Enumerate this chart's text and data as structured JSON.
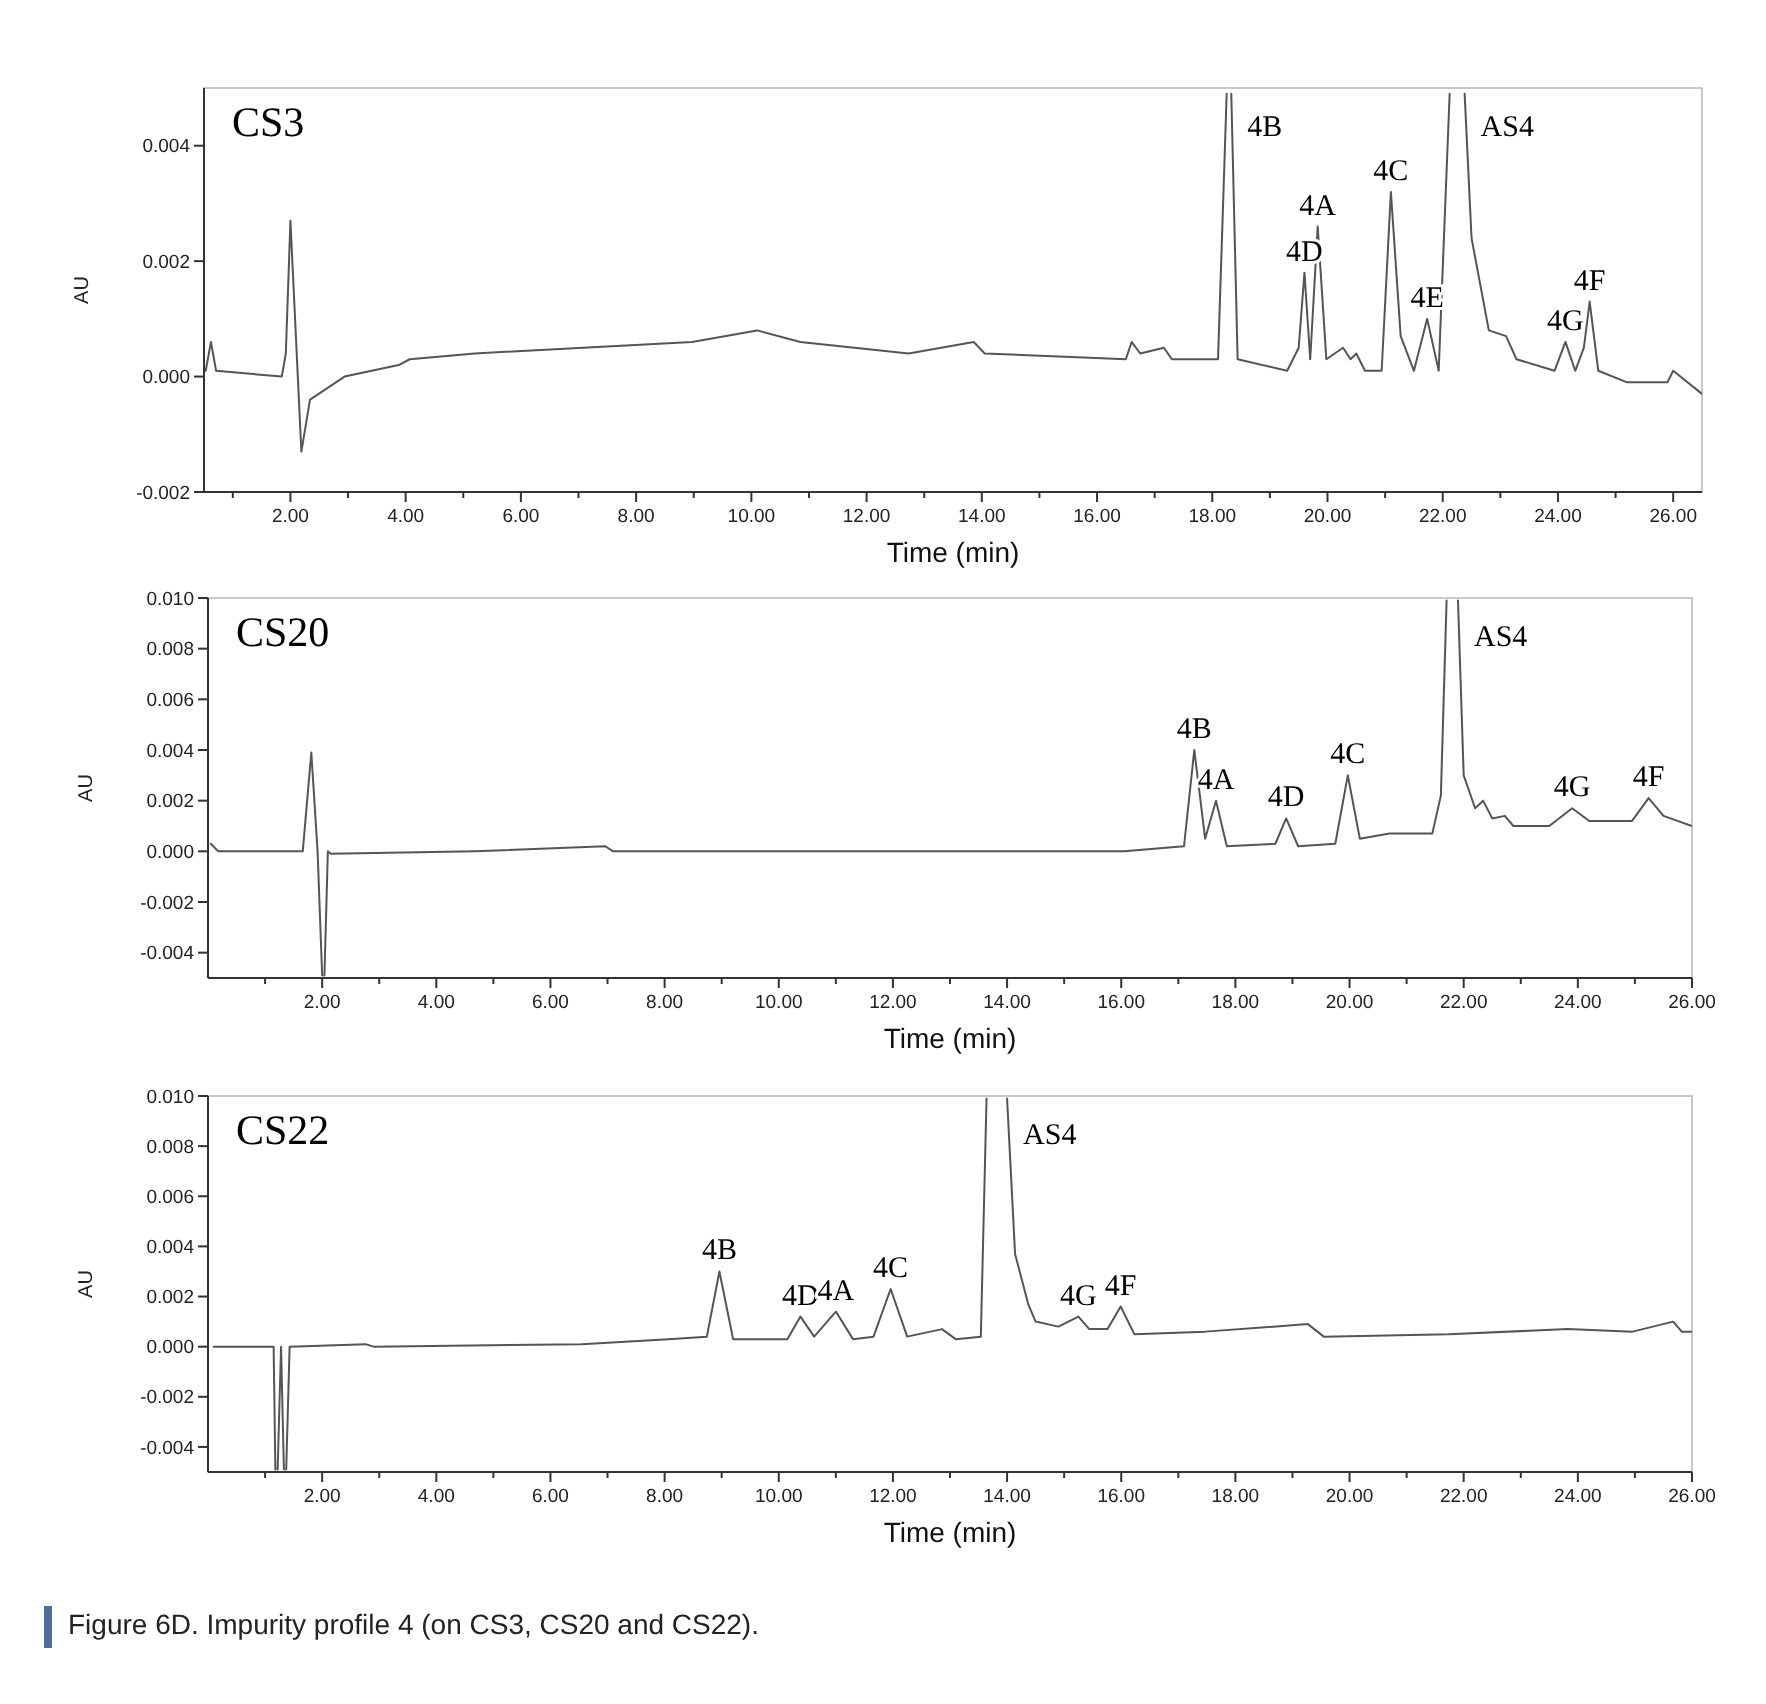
{
  "chart_data": [
    {
      "type": "line",
      "title": "CS3",
      "xlabel": "Time (min)",
      "ylabel": "AU",
      "xlim": [
        0.5,
        26.5
      ],
      "ylim": [
        -0.002,
        0.005
      ],
      "xticks": [
        {
          "value": 1,
          "label": null
        },
        {
          "value": 2,
          "label": "2.00"
        },
        {
          "value": 3,
          "label": null
        },
        {
          "value": 4,
          "label": "4.00"
        },
        {
          "value": 5,
          "label": null
        },
        {
          "value": 6,
          "label": "6.00"
        },
        {
          "value": 7,
          "label": null
        },
        {
          "value": 8,
          "label": "8.00"
        },
        {
          "value": 9,
          "label": null
        },
        {
          "value": 10,
          "label": "10.00"
        },
        {
          "value": 11,
          "label": null
        },
        {
          "value": 12,
          "label": "12.00"
        },
        {
          "value": 13,
          "label": null
        },
        {
          "value": 14,
          "label": "14.00"
        },
        {
          "value": 15,
          "label": null
        },
        {
          "value": 16,
          "label": "16.00"
        },
        {
          "value": 17,
          "label": null
        },
        {
          "value": 18,
          "label": "18.00"
        },
        {
          "value": 19,
          "label": null
        },
        {
          "value": 20,
          "label": "20.00"
        },
        {
          "value": 21,
          "label": null
        },
        {
          "value": 22,
          "label": "22.00"
        },
        {
          "value": 23,
          "label": null
        },
        {
          "value": 24,
          "label": "24.00"
        },
        {
          "value": 25,
          "label": null
        },
        {
          "value": 26,
          "label": "26.00"
        }
      ],
      "yticks": [
        {
          "value": -0.002,
          "label": "-0.002"
        },
        {
          "value": 0,
          "label": "0.000"
        },
        {
          "value": 0.002,
          "label": "0.002"
        },
        {
          "value": 0.004,
          "label": "0.004"
        }
      ],
      "series": [
        {
          "color": "#555555",
          "x": [
            0.53,
            0.62,
            0.71,
            1.85,
            1.92,
            2.0,
            2.19,
            2.34,
            2.94,
            3.88,
            4.07,
            5.2,
            7.08,
            8.97,
            10.1,
            10.85,
            12.73,
            13.86,
            14.05,
            16.5,
            16.6,
            16.75,
            17.16,
            17.3,
            18.1,
            18.25,
            18.29,
            18.33,
            18.44,
            19.3,
            19.5,
            19.6,
            19.7,
            19.83,
            19.98,
            20.27,
            20.4,
            20.5,
            20.65,
            20.94,
            21.1,
            21.27,
            21.5,
            21.73,
            21.93,
            22.12,
            22.25,
            22.38,
            22.5,
            22.8,
            23.1,
            23.28,
            23.94,
            24.13,
            24.3,
            24.45,
            24.55,
            24.7,
            25.2,
            25.9,
            26.0,
            26.5
          ],
          "values": [
            0.0001,
            0.0006,
            0.0001,
            0.0,
            0.0004,
            0.0027,
            -0.0013,
            -0.0004,
            0.0,
            0.0002,
            0.0003,
            0.0004,
            0.0005,
            0.0006,
            0.0008,
            0.0006,
            0.0004,
            0.0006,
            0.0004,
            0.0003,
            0.0006,
            0.0004,
            0.0005,
            0.0003,
            0.0003,
            0.0049,
            null,
            0.0049,
            0.0003,
            0.0001,
            0.0005,
            0.0018,
            0.0003,
            0.0026,
            0.0003,
            0.0005,
            0.0003,
            0.0004,
            0.0001,
            0.0001,
            0.0032,
            0.0007,
            0.0001,
            0.001,
            0.0001,
            0.0049,
            null,
            0.0049,
            0.0024,
            0.0008,
            0.0007,
            0.0003,
            0.0001,
            0.0006,
            0.0001,
            0.0005,
            0.0013,
            0.0001,
            -0.0001,
            -0.0001,
            0.0001,
            -0.0003
          ]
        }
      ],
      "annotations": [
        {
          "text": "4B",
          "x": 18.33,
          "y": 0.0049
        },
        {
          "text": "4D",
          "x": 19.6,
          "y": 0.0018
        },
        {
          "text": "4A",
          "x": 19.83,
          "y": 0.0026
        },
        {
          "text": "4C",
          "x": 21.1,
          "y": 0.0032
        },
        {
          "text": "4E",
          "x": 21.73,
          "y": 0.001
        },
        {
          "text": "AS4",
          "x": 22.38,
          "y": 0.0049
        },
        {
          "text": "4G",
          "x": 24.13,
          "y": 0.0006
        },
        {
          "text": "4F",
          "x": 24.55,
          "y": 0.0013
        }
      ]
    },
    {
      "type": "line",
      "title": "CS20",
      "xlabel": "Time (min)",
      "ylabel": "AU",
      "xlim": [
        0,
        26
      ],
      "ylim": [
        -0.005,
        0.01
      ],
      "xticks": [
        {
          "value": 1,
          "label": null
        },
        {
          "value": 2,
          "label": "2.00"
        },
        {
          "value": 3,
          "label": null
        },
        {
          "value": 4,
          "label": "4.00"
        },
        {
          "value": 5,
          "label": null
        },
        {
          "value": 6,
          "label": "6.00"
        },
        {
          "value": 7,
          "label": null
        },
        {
          "value": 8,
          "label": "8.00"
        },
        {
          "value": 9,
          "label": null
        },
        {
          "value": 10,
          "label": "10.00"
        },
        {
          "value": 11,
          "label": null
        },
        {
          "value": 12,
          "label": "12.00"
        },
        {
          "value": 13,
          "label": null
        },
        {
          "value": 14,
          "label": "14.00"
        },
        {
          "value": 15,
          "label": null
        },
        {
          "value": 16,
          "label": "16.00"
        },
        {
          "value": 17,
          "label": null
        },
        {
          "value": 18,
          "label": "18.00"
        },
        {
          "value": 19,
          "label": null
        },
        {
          "value": 20,
          "label": "20.00"
        },
        {
          "value": 21,
          "label": null
        },
        {
          "value": 22,
          "label": "22.00"
        },
        {
          "value": 23,
          "label": null
        },
        {
          "value": 24,
          "label": "24.00"
        },
        {
          "value": 25,
          "label": null
        },
        {
          "value": 26,
          "label": "26.00"
        }
      ],
      "yticks": [
        {
          "value": -0.004,
          "label": "-0.004"
        },
        {
          "value": -0.002,
          "label": "-0.002"
        },
        {
          "value": 0,
          "label": "0.000"
        },
        {
          "value": 0.002,
          "label": "0.002"
        },
        {
          "value": 0.004,
          "label": "0.004"
        },
        {
          "value": 0.006,
          "label": "0.006"
        },
        {
          "value": 0.008,
          "label": "0.008"
        },
        {
          "value": 0.01,
          "label": "0.010"
        }
      ],
      "series": [
        {
          "color": "#555555",
          "x": [
            0.05,
            0.18,
            1.66,
            1.81,
            1.92,
            2.0,
            2.02,
            2.04,
            2.1,
            2.15,
            4.69,
            6.96,
            7.1,
            16.05,
            17.1,
            17.28,
            17.47,
            17.66,
            17.85,
            18.7,
            18.89,
            19.1,
            19.75,
            19.97,
            20.18,
            20.7,
            21.45,
            21.6,
            21.7,
            21.8,
            21.9,
            22.0,
            22.2,
            22.34,
            22.5,
            22.72,
            22.87,
            23.5,
            23.9,
            24.2,
            24.95,
            25.24,
            25.5,
            26.0
          ],
          "values": [
            0.0003,
            0.0,
            0.0,
            0.0039,
            0.0,
            -0.0049,
            null,
            -0.0049,
            0.0,
            -0.0001,
            0.0,
            0.0002,
            0.0,
            0.0,
            0.0002,
            0.004,
            0.0005,
            0.002,
            0.0002,
            0.0003,
            0.0013,
            0.0002,
            0.0003,
            0.003,
            0.0005,
            0.0007,
            0.0007,
            0.0022,
            0.0099,
            null,
            0.0099,
            0.003,
            0.0017,
            0.002,
            0.0013,
            0.0014,
            0.001,
            0.001,
            0.0017,
            0.0012,
            0.0012,
            0.0021,
            0.0014,
            0.001
          ]
        }
      ],
      "annotations": [
        {
          "text": "4B",
          "x": 17.28,
          "y": 0.004
        },
        {
          "text": "4A",
          "x": 17.66,
          "y": 0.002
        },
        {
          "text": "4D",
          "x": 18.89,
          "y": 0.0013
        },
        {
          "text": "4C",
          "x": 19.97,
          "y": 0.003
        },
        {
          "text": "AS4",
          "x": 21.9,
          "y": 0.0099
        },
        {
          "text": "4G",
          "x": 23.9,
          "y": 0.0017
        },
        {
          "text": "4F",
          "x": 25.24,
          "y": 0.0021
        }
      ]
    },
    {
      "type": "line",
      "title": "CS22",
      "xlabel": "Time (min)",
      "ylabel": "AU",
      "xlim": [
        0,
        26
      ],
      "ylim": [
        -0.005,
        0.01
      ],
      "xticks": [
        {
          "value": 1,
          "label": null
        },
        {
          "value": 2,
          "label": "2.00"
        },
        {
          "value": 3,
          "label": null
        },
        {
          "value": 4,
          "label": "4.00"
        },
        {
          "value": 5,
          "label": null
        },
        {
          "value": 6,
          "label": "6.00"
        },
        {
          "value": 7,
          "label": null
        },
        {
          "value": 8,
          "label": "8.00"
        },
        {
          "value": 9,
          "label": null
        },
        {
          "value": 10,
          "label": "10.00"
        },
        {
          "value": 11,
          "label": null
        },
        {
          "value": 12,
          "label": "12.00"
        },
        {
          "value": 13,
          "label": null
        },
        {
          "value": 14,
          "label": "14.00"
        },
        {
          "value": 15,
          "label": null
        },
        {
          "value": 16,
          "label": "16.00"
        },
        {
          "value": 17,
          "label": null
        },
        {
          "value": 18,
          "label": "18.00"
        },
        {
          "value": 19,
          "label": null
        },
        {
          "value": 20,
          "label": "20.00"
        },
        {
          "value": 21,
          "label": null
        },
        {
          "value": 22,
          "label": "22.00"
        },
        {
          "value": 23,
          "label": null
        },
        {
          "value": 24,
          "label": "24.00"
        },
        {
          "value": 25,
          "label": null
        },
        {
          "value": 26,
          "label": "26.00"
        }
      ],
      "yticks": [
        {
          "value": -0.004,
          "label": "-0.004"
        },
        {
          "value": -0.002,
          "label": "-0.002"
        },
        {
          "value": 0,
          "label": "0.000"
        },
        {
          "value": 0.002,
          "label": "0.002"
        },
        {
          "value": 0.004,
          "label": "0.004"
        },
        {
          "value": 0.006,
          "label": "0.006"
        },
        {
          "value": 0.008,
          "label": "0.008"
        },
        {
          "value": 0.01,
          "label": "0.010"
        }
      ],
      "series": [
        {
          "color": "#555555",
          "x": [
            0.1,
            1.15,
            1.18,
            1.2,
            1.22,
            1.28,
            1.33,
            1.35,
            1.37,
            1.43,
            2.76,
            2.9,
            6.55,
            8.07,
            8.74,
            8.96,
            9.2,
            10.15,
            10.38,
            10.62,
            11.0,
            11.3,
            11.66,
            11.96,
            12.25,
            12.86,
            13.1,
            13.54,
            13.64,
            13.82,
            14.0,
            14.14,
            14.37,
            14.5,
            14.9,
            15.25,
            15.44,
            15.76,
            15.99,
            16.23,
            17.47,
            19.27,
            19.55,
            21.74,
            23.82,
            24.96,
            25.67,
            25.82,
            26.0
          ],
          "values": [
            0.0,
            0.0,
            -0.0049,
            null,
            -0.0049,
            0.0,
            -0.0049,
            null,
            -0.0049,
            0.0,
            0.0001,
            0.0,
            0.0001,
            0.0003,
            0.0004,
            0.003,
            0.0003,
            0.0003,
            0.0012,
            0.0004,
            0.0014,
            0.0003,
            0.0004,
            0.0023,
            0.0004,
            0.0007,
            0.0003,
            0.0004,
            0.0099,
            null,
            0.0099,
            0.0037,
            0.0017,
            0.001,
            0.0008,
            0.0012,
            0.0007,
            0.0007,
            0.0016,
            0.0005,
            0.0006,
            0.0009,
            0.0004,
            0.0005,
            0.0007,
            0.0006,
            0.001,
            0.0006,
            0.0006
          ]
        }
      ],
      "annotations": [
        {
          "text": "4B",
          "x": 8.96,
          "y": 0.003
        },
        {
          "text": "4D",
          "x": 10.38,
          "y": 0.0012
        },
        {
          "text": "4A",
          "x": 11.0,
          "y": 0.0014
        },
        {
          "text": "4C",
          "x": 11.96,
          "y": 0.0023
        },
        {
          "text": "AS4",
          "x": 14.0,
          "y": 0.0099
        },
        {
          "text": "4G",
          "x": 15.25,
          "y": 0.0012
        },
        {
          "text": "4F",
          "x": 15.99,
          "y": 0.0016
        },
        "Figure 6D. Impurity profile 4 (on CS3, CS20 and CS22)."
      ]
    }
  ]
}
